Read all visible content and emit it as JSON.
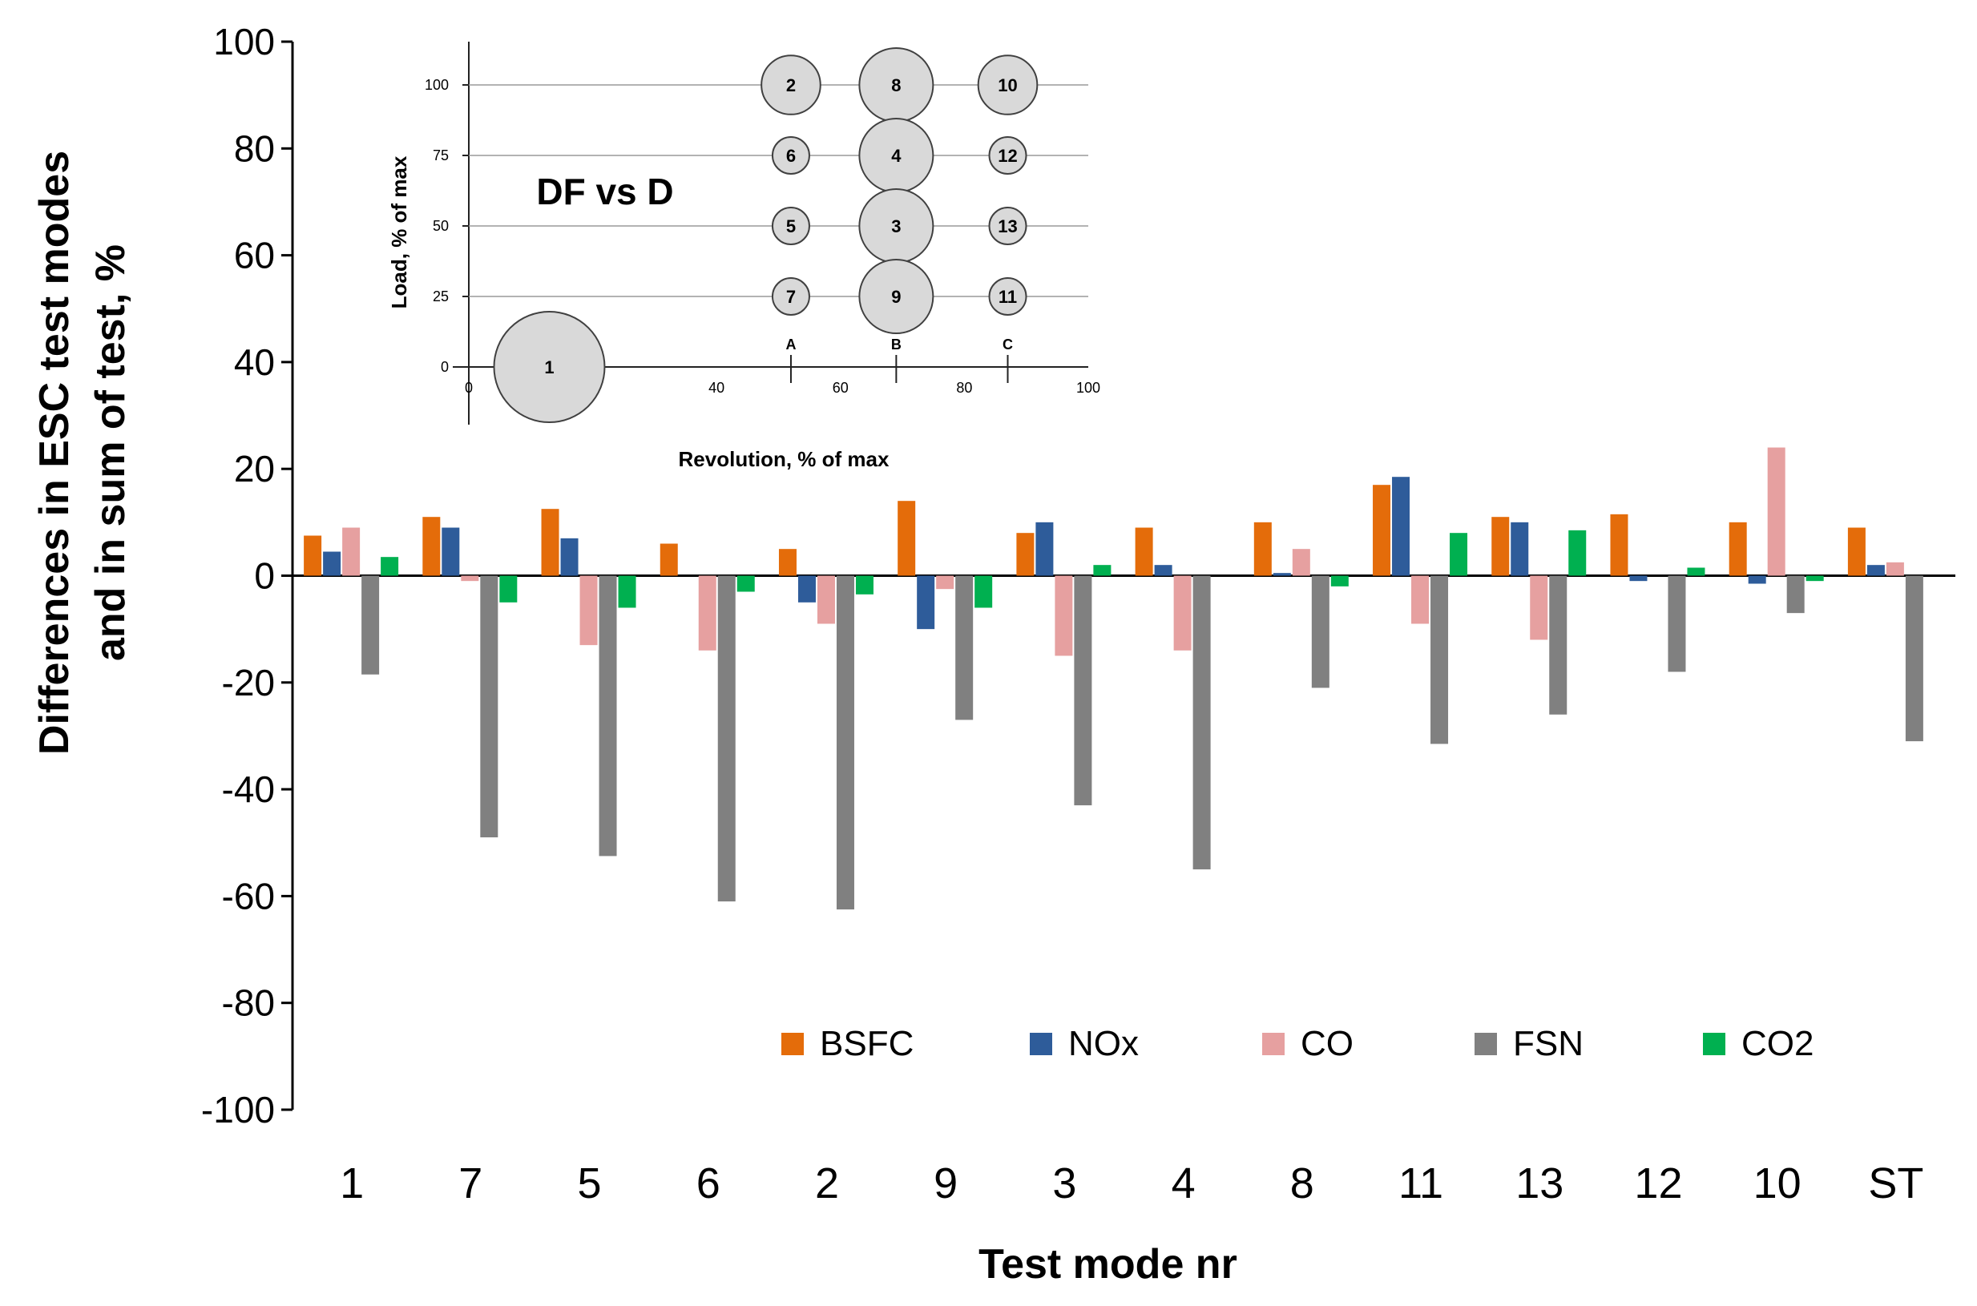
{
  "chart_data": [
    {
      "type": "bar",
      "xlabel": "Test mode nr",
      "ylabel_lines": [
        "Differences in ESC test modes",
        "and in sum of test, %"
      ],
      "ylim": [
        -100,
        100
      ],
      "yticks": [
        100,
        80,
        60,
        40,
        20,
        0,
        -20,
        -40,
        -60,
        -80,
        -100
      ],
      "categories": [
        "1",
        "7",
        "5",
        "6",
        "2",
        "9",
        "3",
        "4",
        "8",
        "11",
        "13",
        "12",
        "10",
        "ST"
      ],
      "series": [
        {
          "name": "BSFC",
          "color": "#E46C0A",
          "values": [
            7.5,
            11,
            12.5,
            6,
            5,
            14,
            8,
            9,
            10,
            17,
            11,
            11.5,
            10,
            9
          ]
        },
        {
          "name": "NOx",
          "color": "#2E5C9A",
          "values": [
            4.5,
            9,
            7,
            0,
            -5,
            -10,
            10,
            2,
            0.5,
            18.5,
            10,
            -1,
            -1.5,
            2
          ]
        },
        {
          "name": "CO",
          "color": "#E6A0A0",
          "values": [
            9,
            -1,
            -13,
            -14,
            -9,
            -2.5,
            -15,
            -14,
            5,
            -9,
            -12,
            0,
            24,
            2.5
          ]
        },
        {
          "name": "FSN",
          "color": "#808080",
          "values": [
            -18.5,
            -49,
            -52.5,
            -61,
            -62.5,
            -27,
            -43,
            -55,
            -21,
            -31.5,
            -26,
            -18,
            -7,
            -31
          ]
        },
        {
          "name": "CO2",
          "color": "#00B050",
          "values": [
            3.5,
            -5,
            -6,
            -3,
            -3.5,
            -6,
            2,
            0,
            -2,
            8,
            8.5,
            1.5,
            -1,
            0
          ]
        }
      ],
      "legend_position": "bottom-right",
      "grid": false
    },
    {
      "type": "scatter",
      "title": "DF vs D",
      "xlabel": "Revolution, % of max",
      "ylabel": "Load, % of max",
      "xlim": [
        0,
        100
      ],
      "ylim": [
        0,
        100
      ],
      "xticks": [
        "0",
        "20",
        "40",
        "60",
        "80",
        "100"
      ],
      "yticks": [
        "0",
        "25",
        "50",
        "75",
        "100"
      ],
      "column_labels": [
        {
          "label": "A",
          "x": 52
        },
        {
          "label": "B",
          "x": 69
        },
        {
          "label": "C",
          "x": 87
        }
      ],
      "points": [
        {
          "label": "1",
          "x": 13,
          "y": 0,
          "weight": 15
        },
        {
          "label": "2",
          "x": 52,
          "y": 100,
          "weight": 8
        },
        {
          "label": "8",
          "x": 69,
          "y": 100,
          "weight": 10
        },
        {
          "label": "10",
          "x": 87,
          "y": 100,
          "weight": 8
        },
        {
          "label": "6",
          "x": 52,
          "y": 75,
          "weight": 5
        },
        {
          "label": "4",
          "x": 69,
          "y": 75,
          "weight": 10
        },
        {
          "label": "12",
          "x": 87,
          "y": 75,
          "weight": 5
        },
        {
          "label": "5",
          "x": 52,
          "y": 50,
          "weight": 5
        },
        {
          "label": "3",
          "x": 69,
          "y": 50,
          "weight": 10
        },
        {
          "label": "13",
          "x": 87,
          "y": 50,
          "weight": 5
        },
        {
          "label": "7",
          "x": 52,
          "y": 25,
          "weight": 5
        },
        {
          "label": "9",
          "x": 69,
          "y": 25,
          "weight": 10
        },
        {
          "label": "11",
          "x": 87,
          "y": 25,
          "weight": 5
        }
      ]
    }
  ]
}
